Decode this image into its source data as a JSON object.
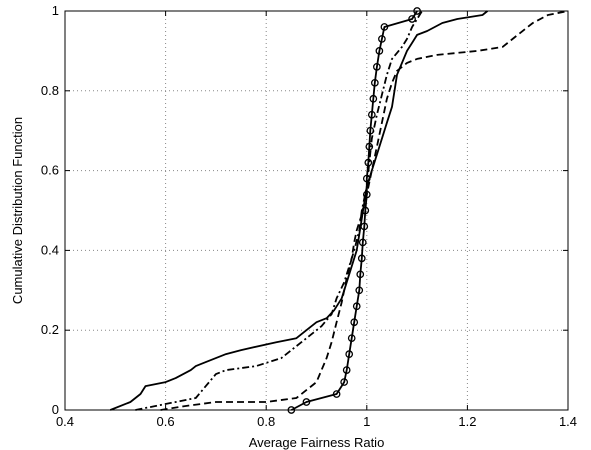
{
  "chart_data": {
    "type": "line",
    "title": "",
    "xlabel": "Average Fairness Ratio",
    "ylabel": "Cumulative Distribution Function",
    "xlim": [
      0.4,
      1.4
    ],
    "ylim": [
      0,
      1
    ],
    "xticks": [
      "0.4",
      "0.6",
      "0.8",
      "1",
      "1.2",
      "1.4"
    ],
    "yticks": [
      "0",
      "0.2",
      "0.4",
      "0.6",
      "0.8",
      "1"
    ],
    "grid": true,
    "legend": "none",
    "series": [
      {
        "style": "solid",
        "marker": "none",
        "points": [
          [
            0.49,
            0.0
          ],
          [
            0.53,
            0.02
          ],
          [
            0.55,
            0.04
          ],
          [
            0.56,
            0.06
          ],
          [
            0.6,
            0.07
          ],
          [
            0.62,
            0.08
          ],
          [
            0.65,
            0.1
          ],
          [
            0.66,
            0.11
          ],
          [
            0.68,
            0.12
          ],
          [
            0.7,
            0.13
          ],
          [
            0.72,
            0.14
          ],
          [
            0.75,
            0.15
          ],
          [
            0.82,
            0.17
          ],
          [
            0.86,
            0.18
          ],
          [
            0.88,
            0.2
          ],
          [
            0.9,
            0.22
          ],
          [
            0.92,
            0.23
          ],
          [
            0.935,
            0.25
          ],
          [
            0.95,
            0.28
          ],
          [
            0.96,
            0.32
          ],
          [
            0.97,
            0.36
          ],
          [
            0.98,
            0.4
          ],
          [
            0.985,
            0.44
          ],
          [
            0.99,
            0.48
          ],
          [
            0.995,
            0.52
          ],
          [
            1.0,
            0.56
          ],
          [
            1.01,
            0.6
          ],
          [
            1.02,
            0.64
          ],
          [
            1.03,
            0.68
          ],
          [
            1.04,
            0.72
          ],
          [
            1.05,
            0.76
          ],
          [
            1.055,
            0.8
          ],
          [
            1.06,
            0.84
          ],
          [
            1.07,
            0.87
          ],
          [
            1.08,
            0.9
          ],
          [
            1.09,
            0.92
          ],
          [
            1.1,
            0.94
          ],
          [
            1.12,
            0.95
          ],
          [
            1.15,
            0.97
          ],
          [
            1.18,
            0.98
          ],
          [
            1.23,
            0.99
          ],
          [
            1.24,
            1.0
          ]
        ]
      },
      {
        "style": "dashed",
        "marker": "none",
        "points": [
          [
            0.59,
            0.0
          ],
          [
            0.64,
            0.01
          ],
          [
            0.7,
            0.02
          ],
          [
            0.8,
            0.02
          ],
          [
            0.86,
            0.03
          ],
          [
            0.88,
            0.05
          ],
          [
            0.9,
            0.07
          ],
          [
            0.91,
            0.1
          ],
          [
            0.92,
            0.13
          ],
          [
            0.93,
            0.17
          ],
          [
            0.94,
            0.22
          ],
          [
            0.95,
            0.27
          ],
          [
            0.96,
            0.33
          ],
          [
            0.97,
            0.38
          ],
          [
            0.975,
            0.42
          ],
          [
            0.98,
            0.45
          ],
          [
            0.99,
            0.49
          ],
          [
            1.0,
            0.54
          ],
          [
            1.01,
            0.6
          ],
          [
            1.02,
            0.66
          ],
          [
            1.03,
            0.72
          ],
          [
            1.04,
            0.78
          ],
          [
            1.05,
            0.82
          ],
          [
            1.06,
            0.85
          ],
          [
            1.08,
            0.87
          ],
          [
            1.1,
            0.88
          ],
          [
            1.14,
            0.89
          ],
          [
            1.22,
            0.9
          ],
          [
            1.27,
            0.91
          ],
          [
            1.3,
            0.94
          ],
          [
            1.33,
            0.97
          ],
          [
            1.36,
            0.99
          ],
          [
            1.4,
            1.0
          ]
        ]
      },
      {
        "style": "dash-dot",
        "marker": "none",
        "points": [
          [
            0.54,
            0.0
          ],
          [
            0.58,
            0.01
          ],
          [
            0.62,
            0.02
          ],
          [
            0.66,
            0.03
          ],
          [
            0.68,
            0.06
          ],
          [
            0.7,
            0.09
          ],
          [
            0.72,
            0.1
          ],
          [
            0.78,
            0.11
          ],
          [
            0.83,
            0.13
          ],
          [
            0.85,
            0.15
          ],
          [
            0.87,
            0.17
          ],
          [
            0.89,
            0.19
          ],
          [
            0.91,
            0.21
          ],
          [
            0.93,
            0.24
          ],
          [
            0.94,
            0.28
          ],
          [
            0.955,
            0.32
          ],
          [
            0.965,
            0.36
          ],
          [
            0.975,
            0.4
          ],
          [
            0.985,
            0.45
          ],
          [
            0.99,
            0.5
          ],
          [
            1.0,
            0.56
          ],
          [
            1.005,
            0.62
          ],
          [
            1.01,
            0.68
          ],
          [
            1.02,
            0.74
          ],
          [
            1.03,
            0.79
          ],
          [
            1.04,
            0.84
          ],
          [
            1.05,
            0.88
          ],
          [
            1.07,
            0.91
          ],
          [
            1.08,
            0.93
          ],
          [
            1.09,
            0.96
          ],
          [
            1.1,
            0.98
          ],
          [
            1.11,
            1.0
          ]
        ]
      },
      {
        "style": "solid",
        "marker": "circle",
        "points": [
          [
            0.85,
            0.0
          ],
          [
            0.88,
            0.02
          ],
          [
            0.94,
            0.04
          ],
          [
            0.955,
            0.07
          ],
          [
            0.96,
            0.1
          ],
          [
            0.965,
            0.14
          ],
          [
            0.97,
            0.18
          ],
          [
            0.975,
            0.22
          ],
          [
            0.98,
            0.26
          ],
          [
            0.985,
            0.3
          ],
          [
            0.987,
            0.34
          ],
          [
            0.99,
            0.38
          ],
          [
            0.992,
            0.42
          ],
          [
            0.995,
            0.46
          ],
          [
            0.997,
            0.5
          ],
          [
            1.0,
            0.54
          ],
          [
            1.0,
            0.58
          ],
          [
            1.003,
            0.62
          ],
          [
            1.005,
            0.66
          ],
          [
            1.007,
            0.7
          ],
          [
            1.01,
            0.74
          ],
          [
            1.013,
            0.78
          ],
          [
            1.016,
            0.82
          ],
          [
            1.02,
            0.86
          ],
          [
            1.025,
            0.9
          ],
          [
            1.03,
            0.93
          ],
          [
            1.035,
            0.96
          ],
          [
            1.09,
            0.98
          ],
          [
            1.1,
            1.0
          ]
        ]
      }
    ]
  }
}
